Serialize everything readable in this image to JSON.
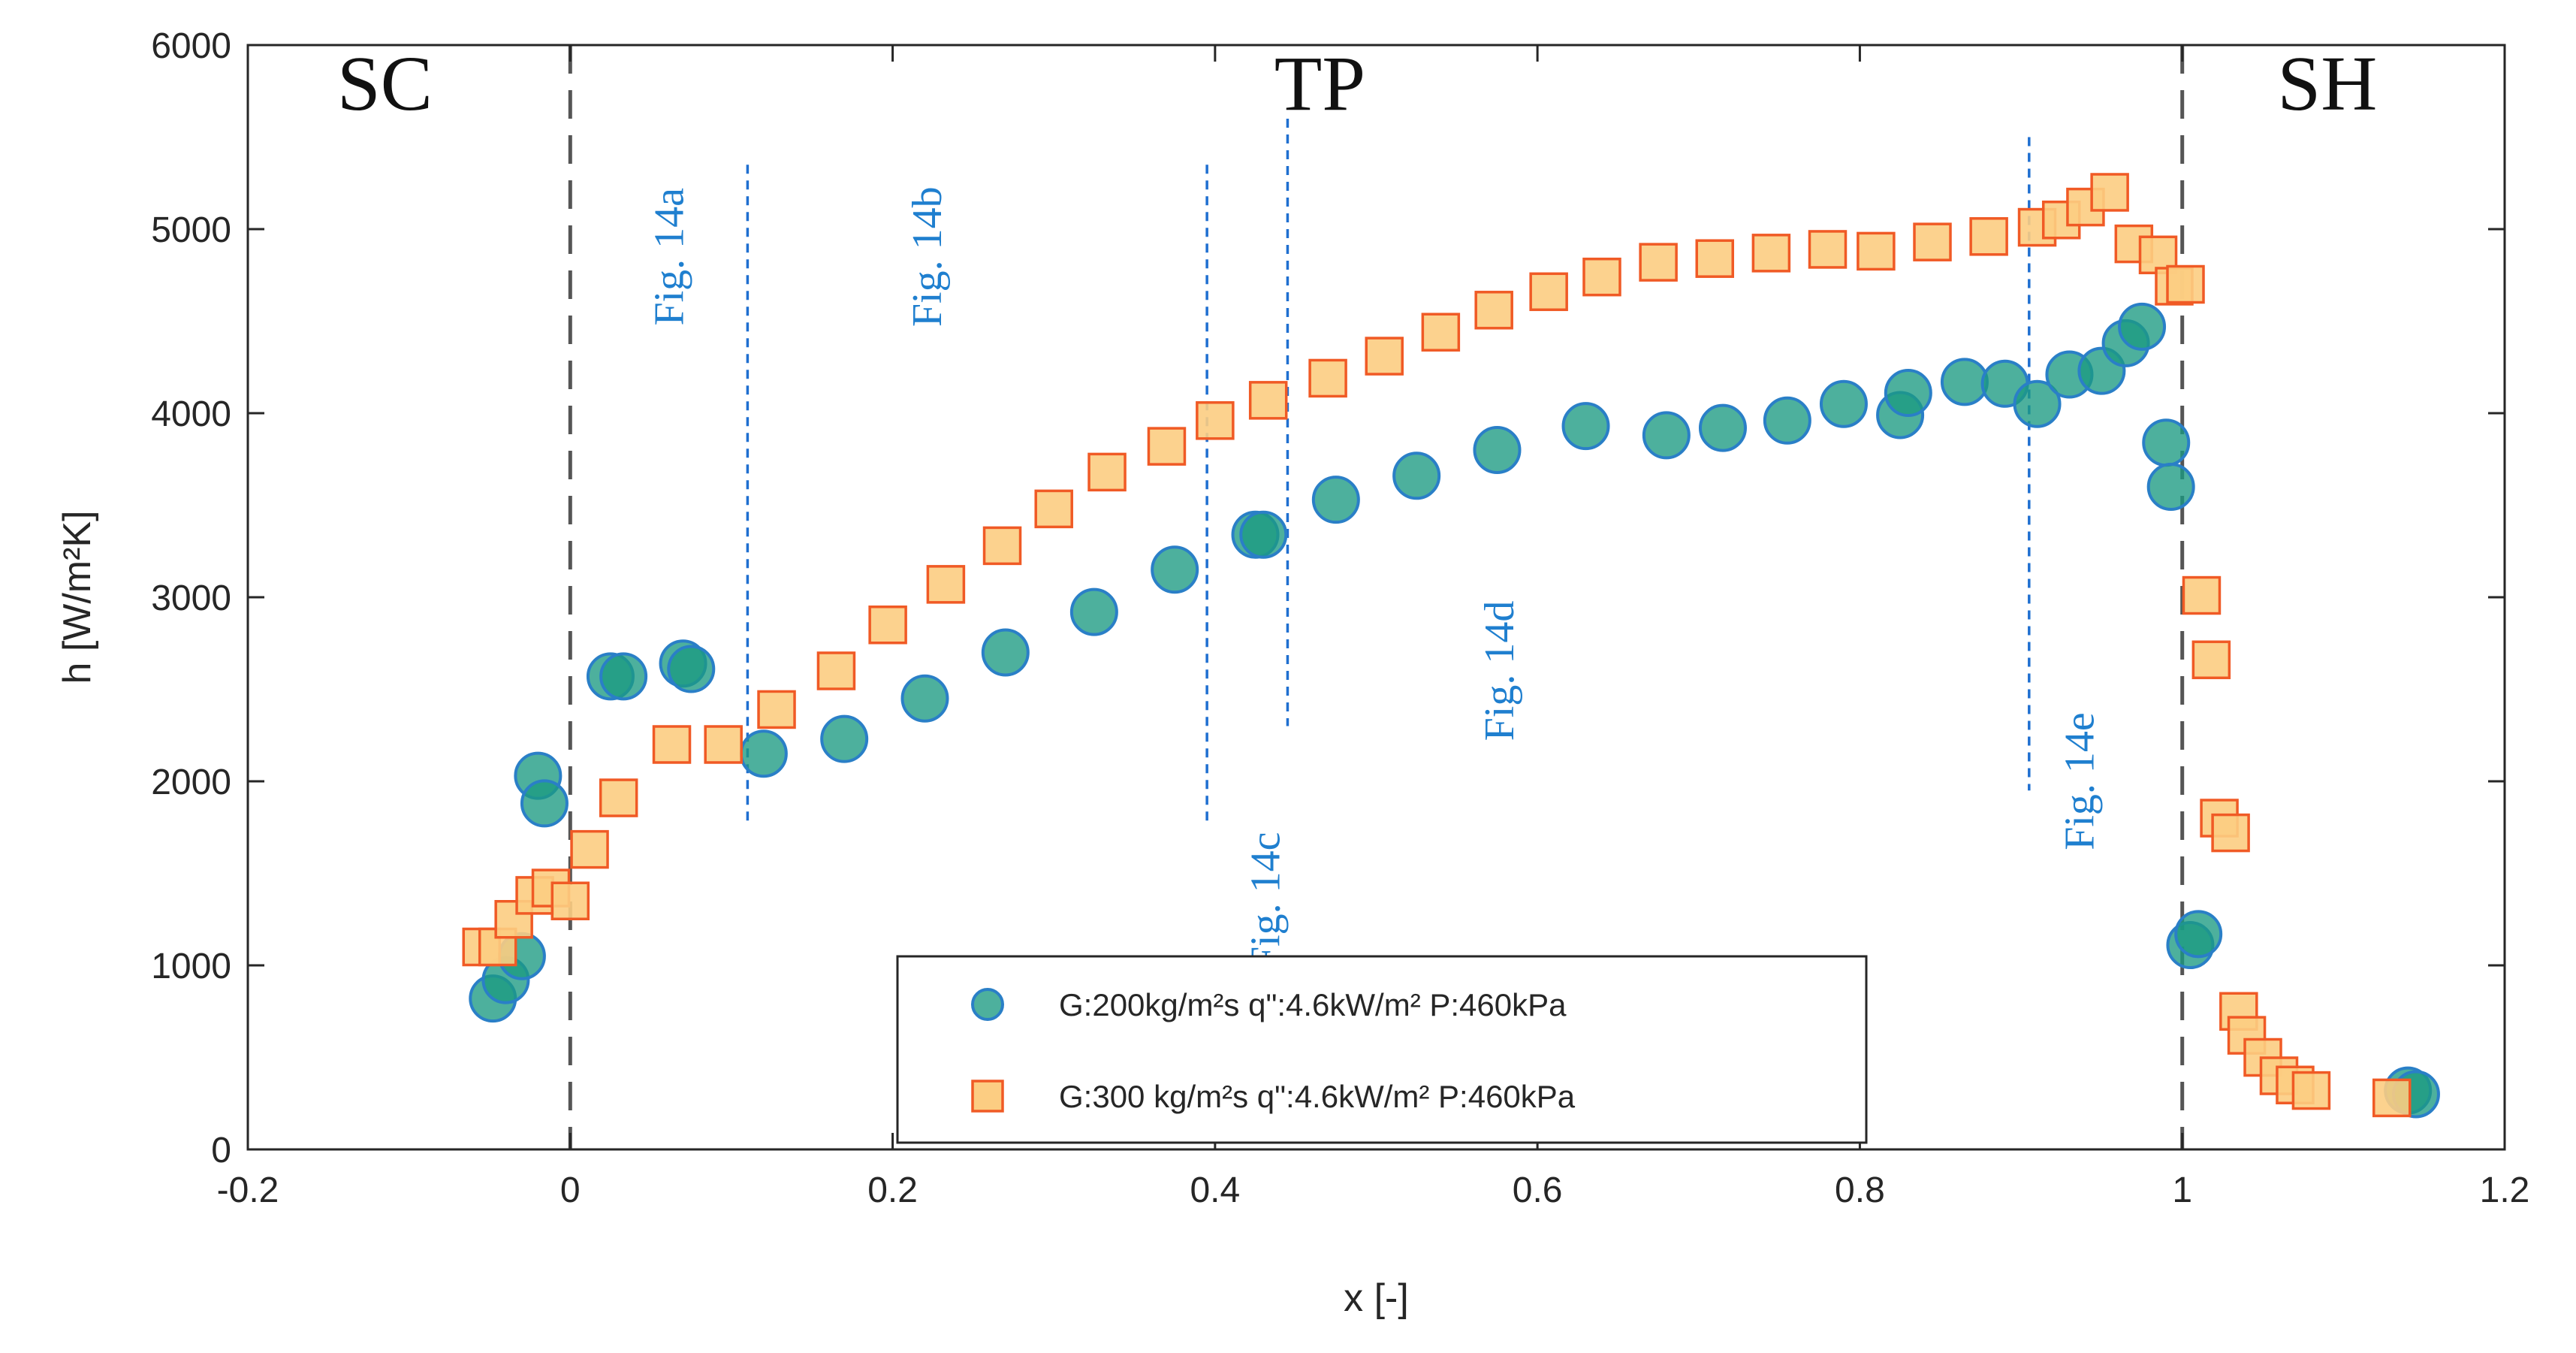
{
  "chart_data": {
    "type": "scatter",
    "xlabel": "x [-]",
    "ylabel": "h [W/m²K]",
    "xlim": [
      -0.2,
      1.2
    ],
    "ylim": [
      0,
      6000
    ],
    "xticks": [
      "-0.2",
      "0",
      "0.2",
      "0.4",
      "0.6",
      "0.8",
      "1",
      "1.2"
    ],
    "yticks": [
      "0",
      "1000",
      "2000",
      "3000",
      "4000",
      "5000",
      "6000"
    ],
    "grid": false,
    "legend_position": "bottom-center",
    "regions": [
      {
        "label": "SC",
        "x": -0.115,
        "y": 5650
      },
      {
        "label": "TP",
        "x": 0.465,
        "y": 5650
      },
      {
        "label": "SH",
        "x": 1.09,
        "y": 5650
      }
    ],
    "region_boundaries": [
      0,
      1
    ],
    "annotations": [
      {
        "label": "Fig. 14a",
        "x": 0.07,
        "y": 4850,
        "divider_x": 0.11,
        "divider_ylim": [
          1750,
          5350
        ]
      },
      {
        "label": "Fig. 14b",
        "x": 0.23,
        "y": 4850,
        "divider_x": 0.395,
        "divider_ylim": [
          1750,
          5350
        ]
      },
      {
        "label": "Fig. 14c",
        "x": 0.44,
        "y": 1350,
        "divider_x": 0.445,
        "divider_ylim": [
          2300,
          5600
        ]
      },
      {
        "label": "Fig. 14d",
        "x": 0.585,
        "y": 2600,
        "divider_x": 0.905,
        "divider_ylim": [
          1950,
          5500
        ]
      },
      {
        "label": "Fig. 14e",
        "x": 0.945,
        "y": 2000
      }
    ],
    "series": [
      {
        "name": "G:200kg/m²s q\":4.6kW/m² P:460kPa",
        "marker": "circle",
        "fill": "#1b9a82",
        "stroke": "#2a7fc7",
        "x": [
          -0.048,
          -0.04,
          -0.03,
          -0.02,
          -0.016,
          0.025,
          0.033,
          0.07,
          0.075,
          0.12,
          0.17,
          0.22,
          0.27,
          0.325,
          0.375,
          0.425,
          0.43,
          0.475,
          0.525,
          0.575,
          0.63,
          0.68,
          0.715,
          0.755,
          0.79,
          0.825,
          0.83,
          0.865,
          0.89,
          0.91,
          0.93,
          0.95,
          0.965,
          0.975,
          0.99,
          0.993,
          1.005,
          1.01,
          1.14,
          1.145
        ],
        "y": [
          820,
          920,
          1050,
          2030,
          1880,
          2570,
          2570,
          2640,
          2610,
          2150,
          2230,
          2450,
          2700,
          2920,
          3150,
          3340,
          3340,
          3530,
          3660,
          3800,
          3930,
          3880,
          3920,
          3960,
          4050,
          3990,
          4110,
          4170,
          4160,
          4050,
          4210,
          4230,
          4380,
          4470,
          3840,
          3600,
          1110,
          1170,
          320,
          300
        ]
      },
      {
        "name": "G:300 kg/m²s q\":4.6kW/m² P:460kPa",
        "marker": "square",
        "fill": "#fccd82",
        "stroke": "#f05a25",
        "x": [
          -0.055,
          -0.045,
          -0.035,
          -0.022,
          -0.012,
          0.0,
          0.012,
          0.03,
          0.063,
          0.095,
          0.128,
          0.165,
          0.197,
          0.233,
          0.268,
          0.3,
          0.333,
          0.37,
          0.4,
          0.433,
          0.47,
          0.505,
          0.54,
          0.573,
          0.607,
          0.64,
          0.675,
          0.71,
          0.745,
          0.78,
          0.81,
          0.845,
          0.88,
          0.91,
          0.925,
          0.94,
          0.955,
          0.97,
          0.985,
          0.995,
          1.002,
          1.012,
          1.018,
          1.023,
          1.03,
          1.035,
          1.04,
          1.05,
          1.06,
          1.07,
          1.08,
          1.13
        ],
        "y": [
          1100,
          1100,
          1250,
          1380,
          1420,
          1350,
          1630,
          1910,
          2200,
          2200,
          2390,
          2600,
          2850,
          3070,
          3280,
          3480,
          3680,
          3820,
          3960,
          4070,
          4190,
          4310,
          4440,
          4560,
          4660,
          4740,
          4820,
          4840,
          4870,
          4890,
          4880,
          4930,
          4960,
          5010,
          5050,
          5120,
          5200,
          4920,
          4860,
          4690,
          4700,
          3010,
          2660,
          1800,
          1720,
          750,
          620,
          500,
          400,
          350,
          320,
          280
        ]
      }
    ]
  }
}
